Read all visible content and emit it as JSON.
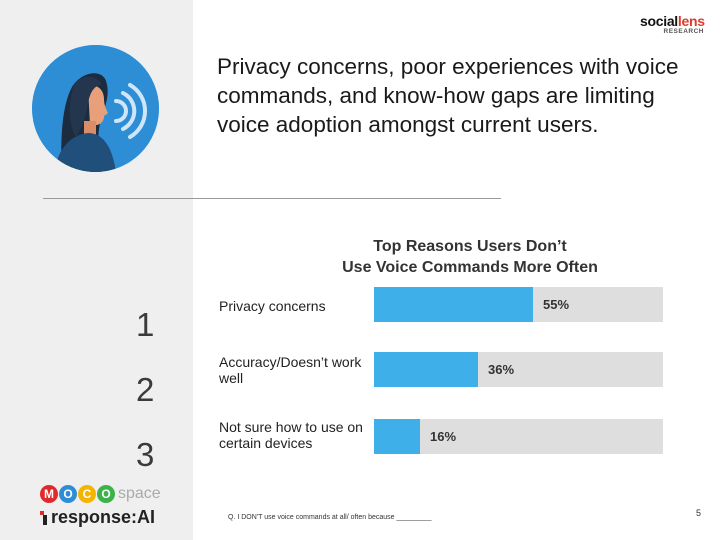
{
  "headline": "Privacy concerns, poor experiences with voice commands, and know-how gaps are limiting voice adoption amongst current users.",
  "logo": {
    "social": "social",
    "lens": "lens",
    "sub": "RESEARCH"
  },
  "chart_data": {
    "type": "bar",
    "orientation": "horizontal",
    "title_lines": [
      "Top Reasons Users Don’t",
      "Use Voice Commands More Often"
    ],
    "categories": [
      "Privacy concerns",
      "Accuracy/Doesn’t work well",
      "Not sure how to use on certain devices"
    ],
    "values": [
      55,
      36,
      16
    ],
    "value_labels": [
      "55%",
      "36%",
      "16%"
    ],
    "xlim": [
      0,
      100
    ],
    "ranks": [
      "1",
      "2",
      "3"
    ],
    "bar_color": "#3eafe8",
    "track_color": "#dedede"
  },
  "footer": {
    "moco_letters": [
      "M",
      "O",
      "C",
      "O"
    ],
    "moco_colors": [
      "#e0292b",
      "#2d8ed6",
      "#f4b400",
      "#3bb34a"
    ],
    "space": "space",
    "response": "response:AI",
    "footnote": "Q. I DON'T use voice commands at all/ often because _________",
    "page_number": "5"
  }
}
